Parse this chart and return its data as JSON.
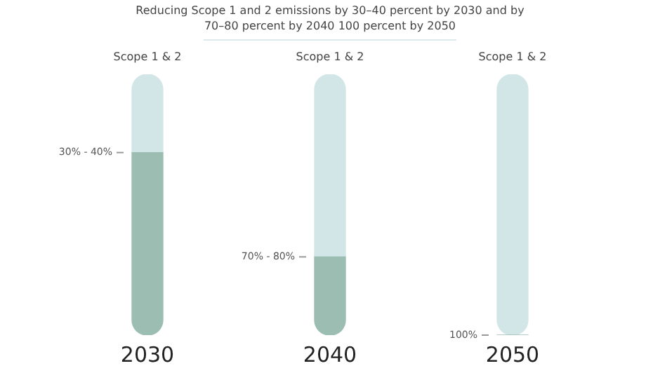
{
  "chart_data": {
    "type": "bar",
    "title": "Reducing Scope 1 and 2 emissions by 30–40 percent by 2030 and by 70–80 percent by 2040 100 percent by 2050",
    "categories": [
      "2030",
      "2040",
      "2050"
    ],
    "stacked": true,
    "ylim": [
      0,
      100
    ],
    "tick_labels": "x",
    "series": [
      {
        "color": "#9bbdb2",
        "values": [
          70,
          30,
          0
        ]
      },
      {
        "color": "#d2e6e8",
        "values": [
          30,
          70,
          100
        ],
        "value_labels": [
          "30% - 40%",
          "70% - 80%",
          "100%"
        ]
      }
    ],
    "annotations": [
      "Scope 1 & 2",
      "Scope 1 & 2",
      "Scope 1 & 2"
    ],
    "legend": false,
    "grid": false
  }
}
